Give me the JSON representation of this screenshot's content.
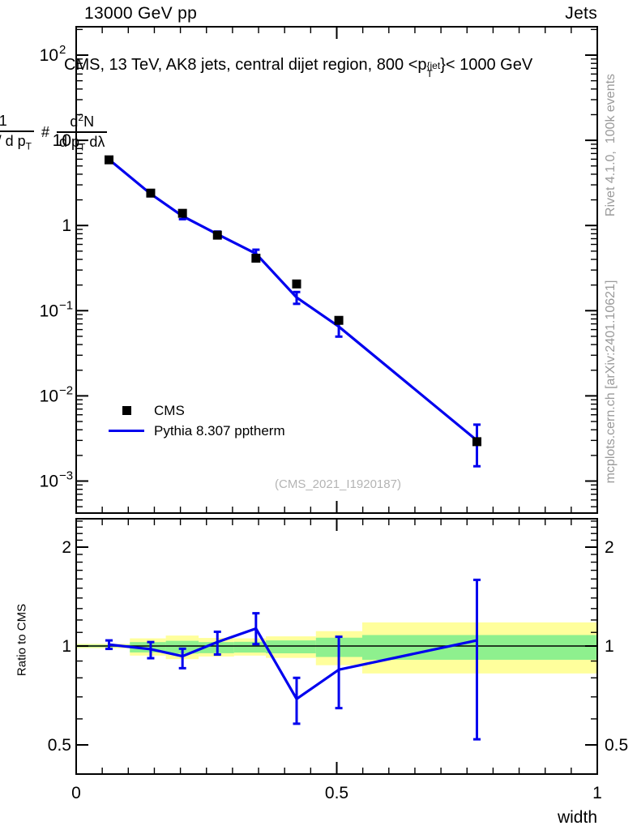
{
  "header": {
    "left": "13000 GeV pp",
    "right": "Jets"
  },
  "plot_title": {
    "prefix": "CMS, 13 TeV, AK8 jets, central dijet region, 800 <p",
    "sup": "{jet",
    "sub": "T",
    "suffix": "}< 1000 GeV"
  },
  "legend": {
    "items": [
      {
        "label": "CMS",
        "marker": "black-square"
      },
      {
        "label": "Pythia 8.307 pptherm",
        "marker": "blue-line"
      }
    ]
  },
  "watermark": "(CMS_2021_I1920187)",
  "side_notes": {
    "generator": "Rivet 4.1.0,  100k events",
    "source": "mcplots.cern.ch [arXiv:2401.10621]"
  },
  "ylabel_main": {
    "hash1": "#",
    "f1_num": "1",
    "f1_den": "dN / d p",
    "f1_den_sub": "T",
    "hash2": "#",
    "f2_num_a": "d",
    "f2_num_sup": "2",
    "f2_num_b": "N",
    "f2_den_a": "d p",
    "f2_den_sub": "T",
    "f2_den_b": " d",
    "f2_den_c": "λ"
  },
  "ratio_ylabel": "Ratio to CMS",
  "colors": {
    "pythia_blue": "#0000ee",
    "band_yellow": "#ffff9c",
    "band_green": "#8ef08e",
    "marker_black": "#000000",
    "gray_text": "#9a9a9a",
    "watermark_gray": "#b4b4b4"
  },
  "chart_data": {
    "type": "line",
    "title": "CMS, 13 TeV, AK8 jets, central dijet region, 800 < pT{jet} < 1000 GeV",
    "xlabel": "width",
    "xlim": [
      0,
      1
    ],
    "xticks": [
      {
        "v": 0,
        "label": "0"
      },
      {
        "v": 0.5,
        "label": "0.5"
      },
      {
        "v": 1,
        "label": "1"
      }
    ],
    "x_minor_step": 0.05,
    "main_panel": {
      "yscale": "log",
      "ylim": [
        0.00042,
        215
      ],
      "yticks": [
        {
          "v": 100,
          "base": "10",
          "exp": "2"
        },
        {
          "v": 10,
          "base": "10",
          "exp": ""
        },
        {
          "v": 1,
          "base": "1",
          "exp": ""
        },
        {
          "v": 0.1,
          "base": "10",
          "exp": "−1"
        },
        {
          "v": 0.01,
          "base": "10",
          "exp": "−2"
        },
        {
          "v": 0.001,
          "base": "10",
          "exp": "−3"
        }
      ]
    },
    "x": [
      0.063,
      0.143,
      0.204,
      0.271,
      0.345,
      0.423,
      0.504,
      0.769
    ],
    "series": [
      {
        "name": "CMS",
        "type": "scatter",
        "marker": "square",
        "color": "#000000",
        "values": [
          5.9,
          2.4,
          1.39,
          0.77,
          0.413,
          0.206,
          0.077,
          0.0029
        ]
      },
      {
        "name": "Pythia 8.307 pptherm",
        "type": "line",
        "color": "#0000ee",
        "values": [
          5.96,
          2.35,
          1.29,
          0.79,
          0.467,
          0.143,
          0.065,
          0.003
        ]
      }
    ],
    "ratio_panel": {
      "ylabel": "Ratio to CMS",
      "yscale": "log",
      "ylim": [
        0.408,
        2.44
      ],
      "yticks": [
        {
          "v": 2,
          "label": "2"
        },
        {
          "v": 1,
          "label": "1"
        },
        {
          "v": 0.5,
          "label": "0.5"
        }
      ],
      "y_minor_step": 0.1,
      "ratio": [
        1.01,
        0.978,
        0.931,
        1.028,
        1.13,
        0.69,
        0.847,
        1.04
      ],
      "err_hi": [
        0.03,
        0.05,
        0.05,
        0.077,
        0.128,
        0.11,
        0.22,
        0.55
      ],
      "err_lo": [
        0.03,
        0.06,
        0.075,
        0.086,
        0.117,
        0.11,
        0.2,
        0.52
      ],
      "bands": [
        {
          "x0": 0.0,
          "x1": 0.103,
          "yellow": [
            0.985,
            1.015
          ],
          "green": [
            0.992,
            1.008
          ]
        },
        {
          "x0": 0.103,
          "x1": 0.172,
          "yellow": [
            0.935,
            1.055
          ],
          "green": [
            0.956,
            1.028
          ]
        },
        {
          "x0": 0.172,
          "x1": 0.235,
          "yellow": [
            0.912,
            1.076
          ],
          "green": [
            0.948,
            1.037
          ]
        },
        {
          "x0": 0.235,
          "x1": 0.303,
          "yellow": [
            0.929,
            1.058
          ],
          "green": [
            0.951,
            1.028
          ]
        },
        {
          "x0": 0.303,
          "x1": 0.364,
          "yellow": [
            0.935,
            1.055
          ],
          "green": [
            0.955,
            1.03
          ]
        },
        {
          "x0": 0.364,
          "x1": 0.46,
          "yellow": [
            0.92,
            1.07
          ],
          "green": [
            0.95,
            1.04
          ]
        },
        {
          "x0": 0.46,
          "x1": 0.549,
          "yellow": [
            0.874,
            1.11
          ],
          "green": [
            0.926,
            1.06
          ]
        },
        {
          "x0": 0.549,
          "x1": 1.0,
          "yellow": [
            0.825,
            1.18
          ],
          "green": [
            0.908,
            1.08
          ]
        }
      ]
    }
  }
}
